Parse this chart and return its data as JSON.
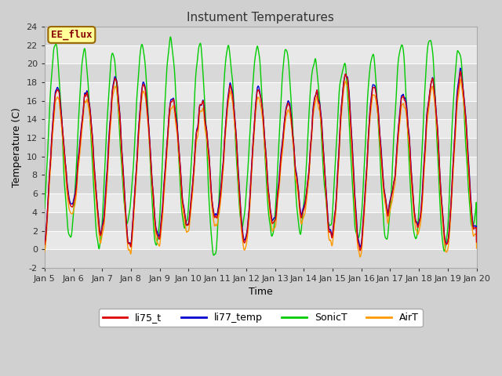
{
  "title": "Instument Temperatures",
  "xlabel": "Time",
  "ylabel": "Temperature (C)",
  "ylim": [
    -2,
    24
  ],
  "yticks": [
    -2,
    0,
    2,
    4,
    6,
    8,
    10,
    12,
    14,
    16,
    18,
    20,
    22,
    24
  ],
  "xtick_labels": [
    "Jan 5",
    "Jan 6",
    "Jan 7",
    "Jan 8",
    "Jan 9",
    "Jan 10",
    "Jan 11",
    "Jan 12",
    "Jan 13",
    "Jan 14",
    "Jan 15",
    "Jan 16",
    "Jan 17",
    "Jan 18",
    "Jan 19",
    "Jan 20"
  ],
  "legend_labels": [
    "li75_t",
    "li77_temp",
    "SonicT",
    "AirT"
  ],
  "line_colors": [
    "#dd0000",
    "#0000cc",
    "#00cc00",
    "#ff9900"
  ],
  "annotation_text": "EE_flux",
  "annotation_bg": "#ffff99",
  "annotation_border": "#996600",
  "annotation_text_color": "#880000",
  "fig_bg": "#d0d0d0",
  "plot_bg_light": "#e8e8e8",
  "plot_bg_dark": "#d8d8d8",
  "grid_color": "#ffffff",
  "title_fontsize": 11,
  "axis_label_fontsize": 9,
  "tick_fontsize": 8,
  "lw": 1.0
}
